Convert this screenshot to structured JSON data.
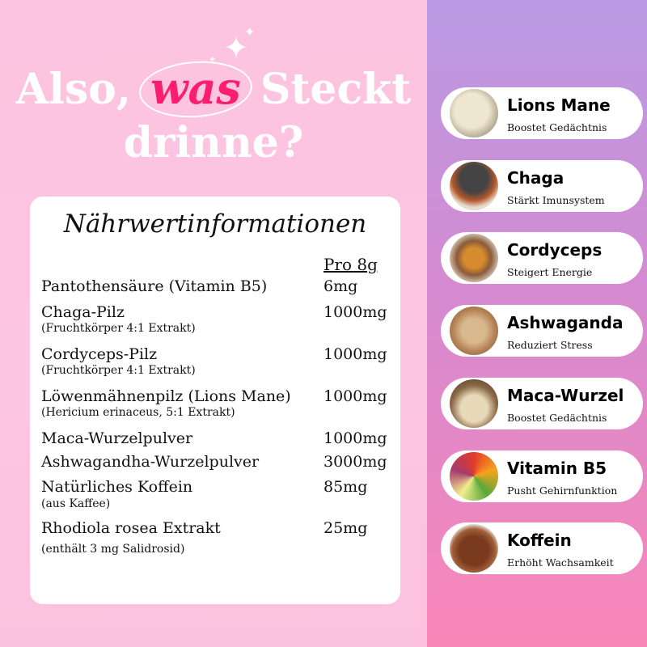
{
  "headline": {
    "part1": "Also,",
    "highlight": "was",
    "part2": "Steckt",
    "line2": "drinne?"
  },
  "colors": {
    "highlight": "#fa1f6e",
    "background_left": "#fdc4e0",
    "panel_top": "#b99be4",
    "panel_bottom": "#f986b8"
  },
  "table": {
    "title": "Nährwertinformationen",
    "column_header": "Pro 8g",
    "rows": [
      {
        "name": "Pantothensäure (Vitamin B5)",
        "sub": "",
        "value": "6mg"
      },
      {
        "name": "Chaga-Pilz",
        "sub": "(Fruchtkörper 4:1 Extrakt)",
        "value": "1000mg"
      },
      {
        "name": "Cordyceps-Pilz",
        "sub": "(Fruchtkörper 4:1 Extrakt)",
        "value": "1000mg"
      },
      {
        "name": "Löwenmähnenpilz (Lions Mane)",
        "sub": "(Hericium erinaceus, 5:1 Extrakt)",
        "value": "1000mg"
      },
      {
        "name": "Maca-Wurzelpulver",
        "sub": "",
        "value": "1000mg"
      },
      {
        "name": "Ashwagandha-Wurzelpulver",
        "sub": "",
        "value": "3000mg"
      },
      {
        "name": "Natürliches Koffein",
        "sub": "(aus Kaffee)",
        "value": "85mg"
      },
      {
        "name": "Rhodiola rosea Extrakt",
        "sub": "(enthält 3 mg Salidrosid)",
        "value": "25mg"
      }
    ]
  },
  "ingredients": [
    {
      "name": "Lions Mane",
      "benefit": "Boostet Gedächtnis",
      "image": "lions-mane-mushroom"
    },
    {
      "name": "Chaga",
      "benefit": "Stärkt Imunsystem",
      "image": "chaga-mushroom"
    },
    {
      "name": "Cordyceps",
      "benefit": "Steigert Energie",
      "image": "cordyceps"
    },
    {
      "name": "Ashwaganda",
      "benefit": "Reduziert Stress",
      "image": "ashwagandha-root"
    },
    {
      "name": "Maca-Wurzel",
      "benefit": "Boostet Gedächtnis",
      "image": "maca-root"
    },
    {
      "name": "Vitamin B5",
      "benefit": "Pusht Gehirnfunktion",
      "image": "vegetables"
    },
    {
      "name": "Koffein",
      "benefit": "Erhöht Wachsamkeit",
      "image": "coffee-powder"
    }
  ]
}
